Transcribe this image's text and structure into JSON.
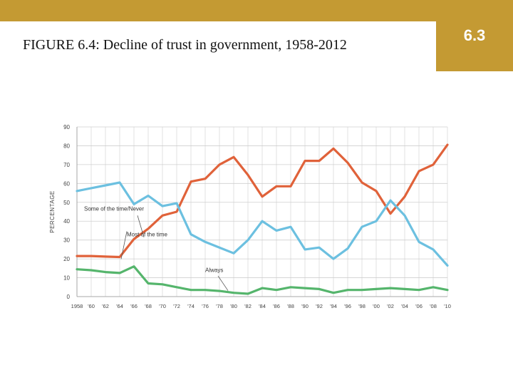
{
  "header": {
    "title": "FIGURE 6.4: Decline of trust in government, 1958-2012",
    "section_number": "6.3"
  },
  "colors": {
    "band": "#c49a33",
    "most": "#e0623a",
    "some": "#6cc0e0",
    "always": "#55b56c",
    "grid": "#cfcfcf"
  },
  "chart_data": {
    "type": "line",
    "title": "",
    "xlabel": "",
    "ylabel": "PERCENTAGE",
    "ylim": [
      0,
      90
    ],
    "yticks": [
      0,
      10,
      20,
      30,
      40,
      50,
      60,
      70,
      80,
      90
    ],
    "grid": true,
    "categories": [
      "1958",
      "'60",
      "'62",
      "'64",
      "'66",
      "'68",
      "'70",
      "'72",
      "'74",
      "'76",
      "'78",
      "'80",
      "'82",
      "'84",
      "'86",
      "'88",
      "'90",
      "'92",
      "'94",
      "'96",
      "'98",
      "'00",
      "'02",
      "'04",
      "'06",
      "'08",
      "'10"
    ],
    "series": [
      {
        "name": "Most of the time",
        "color_key": "most",
        "values": [
          21.5,
          21.5,
          21.2,
          21,
          30.5,
          36,
          43,
          45,
          61,
          62.5,
          70,
          74,
          64.5,
          53,
          58.5,
          58.5,
          72,
          72,
          78.5,
          71,
          60.5,
          56,
          44,
          53,
          66.5,
          70,
          80.5
        ]
      },
      {
        "name": "Some of the time/Never",
        "color_key": "some",
        "values": [
          56,
          57.5,
          59,
          60.5,
          49,
          53.5,
          48,
          49.5,
          33,
          29,
          26,
          23,
          30,
          40,
          35,
          37,
          25,
          26,
          20,
          25.5,
          37,
          40,
          51,
          43,
          29,
          25,
          16.5
        ]
      },
      {
        "name": "Always",
        "color_key": "always",
        "values": [
          14.5,
          14,
          13,
          12.5,
          16,
          7,
          6.5,
          5,
          3.5,
          3.5,
          3,
          2,
          1.5,
          4.5,
          3.5,
          5,
          4.5,
          4,
          2,
          3.5,
          3.5,
          4,
          4.5,
          4,
          3.5,
          5,
          3.5
        ]
      }
    ],
    "annotations": [
      {
        "text": "Most of the time",
        "series": "Most of the time",
        "at_category": "'64"
      },
      {
        "text": "Some of the time/Never",
        "series": "Some of the time/Never",
        "at_category": "'72"
      },
      {
        "text": "Always",
        "series": "Always",
        "at_category": "'80"
      }
    ]
  }
}
